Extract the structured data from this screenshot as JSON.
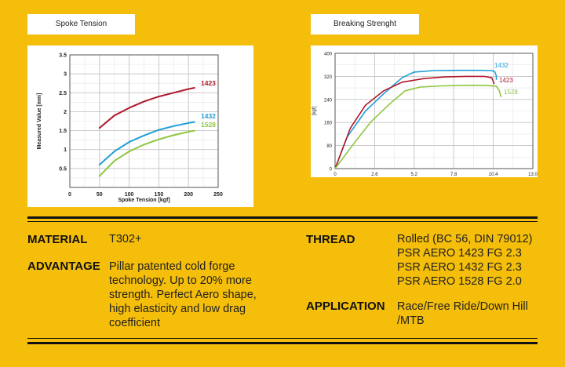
{
  "tabs": {
    "spoke_tension": "Spoke Tension",
    "breaking_strength": "Breaking Strenght"
  },
  "chart_data": [
    {
      "type": "line",
      "title": "",
      "xlabel": "Spoke Tension [kgf]",
      "ylabel": "Measured Value [mm]",
      "xlim": [
        0,
        250
      ],
      "ylim": [
        0,
        3.5
      ],
      "x_ticks": [
        "0",
        "50",
        "100",
        "150",
        "200",
        "250"
      ],
      "y_ticks": [
        "0.5",
        "1",
        "1.5",
        "2",
        "2.5",
        "3",
        "3.5"
      ],
      "grid": true,
      "series": [
        {
          "name": "1423",
          "color": "#B0182A",
          "x": [
            50,
            75,
            100,
            125,
            150,
            175,
            200,
            210
          ],
          "y": [
            1.57,
            1.9,
            2.1,
            2.27,
            2.4,
            2.5,
            2.6,
            2.63
          ]
        },
        {
          "name": "1432",
          "color": "#1F9FD8",
          "x": [
            50,
            75,
            100,
            125,
            150,
            175,
            200,
            210
          ],
          "y": [
            0.6,
            0.95,
            1.2,
            1.37,
            1.52,
            1.62,
            1.7,
            1.73
          ]
        },
        {
          "name": "1528",
          "color": "#8DC63F",
          "x": [
            50,
            75,
            100,
            125,
            150,
            175,
            200,
            210
          ],
          "y": [
            0.3,
            0.7,
            0.95,
            1.13,
            1.27,
            1.38,
            1.47,
            1.5
          ]
        }
      ]
    },
    {
      "type": "line",
      "title": "",
      "xlabel": "",
      "ylabel": "[kgf]",
      "xlim": [
        0,
        13
      ],
      "ylim": [
        0,
        400
      ],
      "x_ticks": [
        "0",
        "2.6",
        "5.2",
        "7.8",
        "10.4",
        "13.0"
      ],
      "y_ticks": [
        "0",
        "80",
        "160",
        "240",
        "320",
        "400"
      ],
      "grid": true,
      "series": [
        {
          "name": "1432",
          "color": "#1F9FD8",
          "x": [
            0,
            0.8,
            2.0,
            3.2,
            4.4,
            5.2,
            6.5,
            8.0,
            9.5,
            10.3,
            10.5,
            10.6,
            10.6
          ],
          "y": [
            0,
            110,
            200,
            260,
            315,
            335,
            340,
            341,
            341,
            340,
            336,
            322,
            310
          ]
        },
        {
          "name": "1423",
          "color": "#B0182A",
          "x": [
            0,
            1.0,
            2.0,
            3.2,
            4.4,
            5.8,
            7.2,
            8.6,
            9.8,
            10.3,
            10.4,
            10.45
          ],
          "y": [
            0,
            140,
            220,
            270,
            300,
            312,
            318,
            320,
            320,
            315,
            302,
            295
          ]
        },
        {
          "name": "1528",
          "color": "#8DC63F",
          "x": [
            0,
            1.2,
            2.4,
            3.6,
            4.6,
            5.6,
            7.0,
            8.5,
            9.8,
            10.6,
            10.8,
            10.9
          ],
          "y": [
            0,
            85,
            165,
            225,
            270,
            283,
            287,
            289,
            289,
            286,
            270,
            250
          ]
        }
      ]
    }
  ],
  "specs": {
    "material_label": "MATERIAL",
    "material_value": "T302+",
    "advantage_label": "ADVANTAGE",
    "advantage_lines": [
      "Pillar patented cold forge",
      "technology. Up to 20% more",
      "strength. Perfect Aero shape,",
      "high elasticity and low drag",
      "coefficient"
    ],
    "thread_label": "THREAD",
    "thread_lines": [
      "Rolled (BC 56, DIN 79012)",
      "PSR AERO 1423 FG 2.3",
      "PSR AERO 1432 FG 2.3",
      "PSR AERO 1528 FG 2.0"
    ],
    "application_label": "APPLICATION",
    "application_lines": [
      "Race/Free Ride/Down Hill",
      "/MTB"
    ]
  }
}
